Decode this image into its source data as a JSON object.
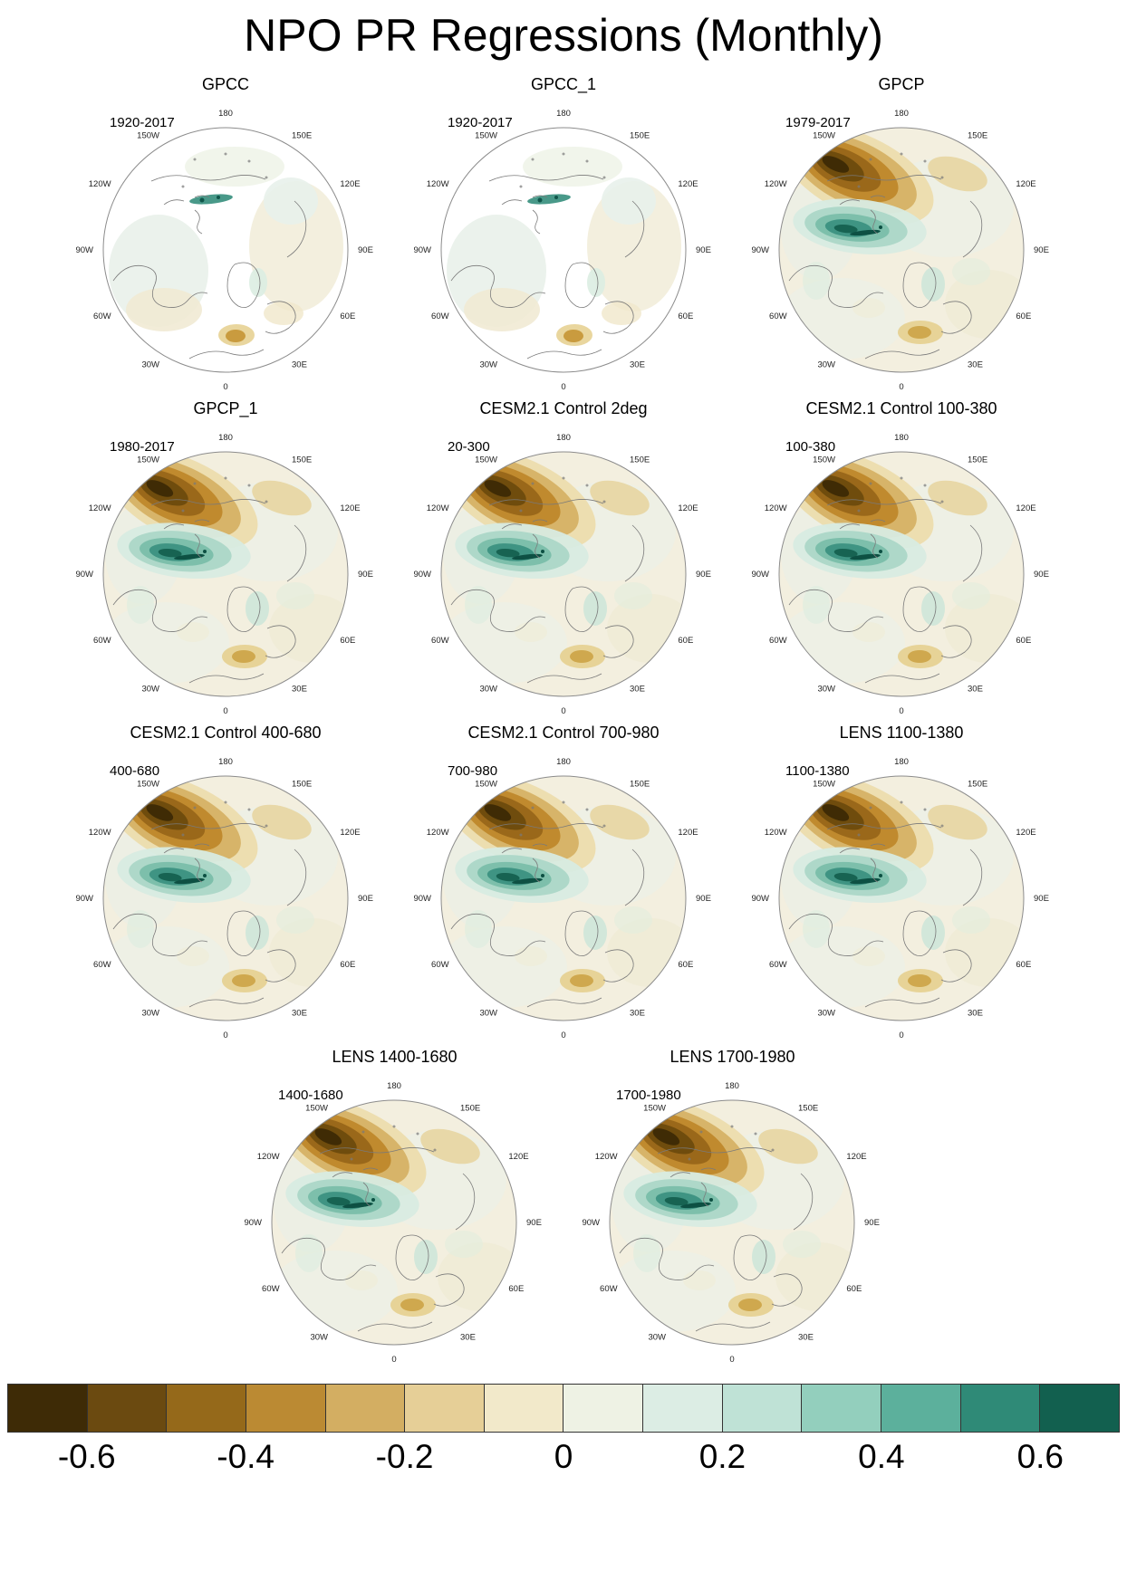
{
  "title": "NPO PR Regressions (Monthly)",
  "lon_labels": [
    "180",
    "150W",
    "150E",
    "120W",
    "120E",
    "90W",
    "90E",
    "60W",
    "60E",
    "30W",
    "30E",
    "0"
  ],
  "panels": [
    {
      "title": "GPCC",
      "period": "1920-2017",
      "style": "land_only"
    },
    {
      "title": "GPCC_1",
      "period": "1920-2017",
      "style": "land_only"
    },
    {
      "title": "GPCP",
      "period": "1979-2017",
      "style": "full"
    },
    {
      "title": "GPCP_1",
      "period": "1980-2017",
      "style": "full"
    },
    {
      "title": "CESM2.1 Control 2deg",
      "period": "20-300",
      "style": "full"
    },
    {
      "title": "CESM2.1 Control 100-380",
      "period": "100-380",
      "style": "full"
    },
    {
      "title": "CESM2.1 Control 400-680",
      "period": "400-680",
      "style": "full"
    },
    {
      "title": "CESM2.1 Control 700-980",
      "period": "700-980",
      "style": "full"
    },
    {
      "title": "LENS 1100-1380",
      "period": "1100-1380",
      "style": "full"
    },
    {
      "title": "LENS 1400-1680",
      "period": "1400-1680",
      "style": "full"
    },
    {
      "title": "LENS 1700-1980",
      "period": "1700-1980",
      "style": "full"
    }
  ],
  "colorbar": {
    "ticks": [
      "-0.6",
      "-0.4",
      "-0.2",
      "0",
      "0.2",
      "0.4",
      "0.6"
    ],
    "colors": [
      "#3e2b06",
      "#6b4a10",
      "#95691a",
      "#bb8a33",
      "#d3ae62",
      "#e6cf97",
      "#f2e9ca",
      "#eef2e4",
      "#dcede4",
      "#bfe2d6",
      "#93cfbd",
      "#5cb09c",
      "#2f8a77",
      "#12604f"
    ]
  },
  "chart_data": {
    "type": "heatmap",
    "subtype": "north-polar-stereographic map grid of regression coefficients",
    "title": "NPO PR Regressions (Monthly)",
    "n_panels": 11,
    "panels": [
      {
        "title": "GPCC",
        "period": "1920-2017",
        "coverage": "land-only"
      },
      {
        "title": "GPCC_1",
        "period": "1920-2017",
        "coverage": "land-only"
      },
      {
        "title": "GPCP",
        "period": "1979-2017",
        "coverage": "land+ocean"
      },
      {
        "title": "GPCP_1",
        "period": "1980-2017",
        "coverage": "land+ocean"
      },
      {
        "title": "CESM2.1 Control 2deg",
        "period": "20-300",
        "coverage": "land+ocean"
      },
      {
        "title": "CESM2.1 Control 100-380",
        "period": "100-380",
        "coverage": "land+ocean"
      },
      {
        "title": "CESM2.1 Control 400-680",
        "period": "400-680",
        "coverage": "land+ocean"
      },
      {
        "title": "CESM2.1 Control 700-980",
        "period": "700-980",
        "coverage": "land+ocean"
      },
      {
        "title": "LENS 1100-1380",
        "period": "1100-1380",
        "coverage": "land+ocean"
      },
      {
        "title": "LENS 1400-1680",
        "period": "1400-1680",
        "coverage": "land+ocean"
      },
      {
        "title": "LENS 1700-1980",
        "period": "1700-1980",
        "coverage": "land+ocean"
      }
    ],
    "longitude_ring_labels": [
      "180",
      "150W",
      "150E",
      "120W",
      "120E",
      "90W",
      "90E",
      "60W",
      "60E",
      "30W",
      "30E",
      "0"
    ],
    "colorbar": {
      "orientation": "horizontal",
      "position": "bottom",
      "tick_values": [
        -0.6,
        -0.4,
        -0.2,
        0,
        0.2,
        0.4,
        0.6
      ],
      "range": [
        -0.7,
        0.7
      ],
      "n_segments": 14,
      "colors": [
        "#3e2b06",
        "#6b4a10",
        "#95691a",
        "#bb8a33",
        "#d3ae62",
        "#e6cf97",
        "#f2e9ca",
        "#eef2e4",
        "#dcede4",
        "#bfe2d6",
        "#93cfbd",
        "#5cb09c",
        "#2f8a77",
        "#12604f"
      ]
    },
    "pattern_summary": "Each polar map shows a dipole: a strong negative (brown) precipitation regression centered over the central North Pacific near the Aleutians (strongest ~-0.7), a positive (teal) regression band along the Gulf of Alaska / Alaskan coast (up to ~+0.7), and weak scattered anomalies (|r| < 0.2) elsewhere. GPCC panels have data over land only (ocean left white)."
  }
}
